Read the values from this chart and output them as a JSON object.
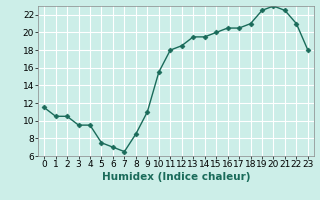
{
  "x": [
    0,
    1,
    2,
    3,
    4,
    5,
    6,
    7,
    8,
    9,
    10,
    11,
    12,
    13,
    14,
    15,
    16,
    17,
    18,
    19,
    20,
    21,
    22,
    23
  ],
  "y": [
    11.5,
    10.5,
    10.5,
    9.5,
    9.5,
    7.5,
    7.0,
    6.5,
    8.5,
    11.0,
    15.5,
    18.0,
    18.5,
    19.5,
    19.5,
    20.0,
    20.5,
    20.5,
    21.0,
    22.5,
    23.0,
    22.5,
    21.0,
    18.0
  ],
  "line_color": "#1a6b5a",
  "marker": "D",
  "marker_size": 2.5,
  "bg_color": "#cceee8",
  "grid_color": "#ffffff",
  "xlabel": "Humidex (Indice chaleur)",
  "ylim": [
    6,
    23
  ],
  "yticks": [
    6,
    8,
    10,
    12,
    14,
    16,
    18,
    20,
    22
  ],
  "xlim": [
    -0.5,
    23.5
  ],
  "xticks": [
    0,
    1,
    2,
    3,
    4,
    5,
    6,
    7,
    8,
    9,
    10,
    11,
    12,
    13,
    14,
    15,
    16,
    17,
    18,
    19,
    20,
    21,
    22,
    23
  ],
  "xlabel_fontsize": 7.5,
  "tick_fontsize": 6.5,
  "line_width": 1.0
}
